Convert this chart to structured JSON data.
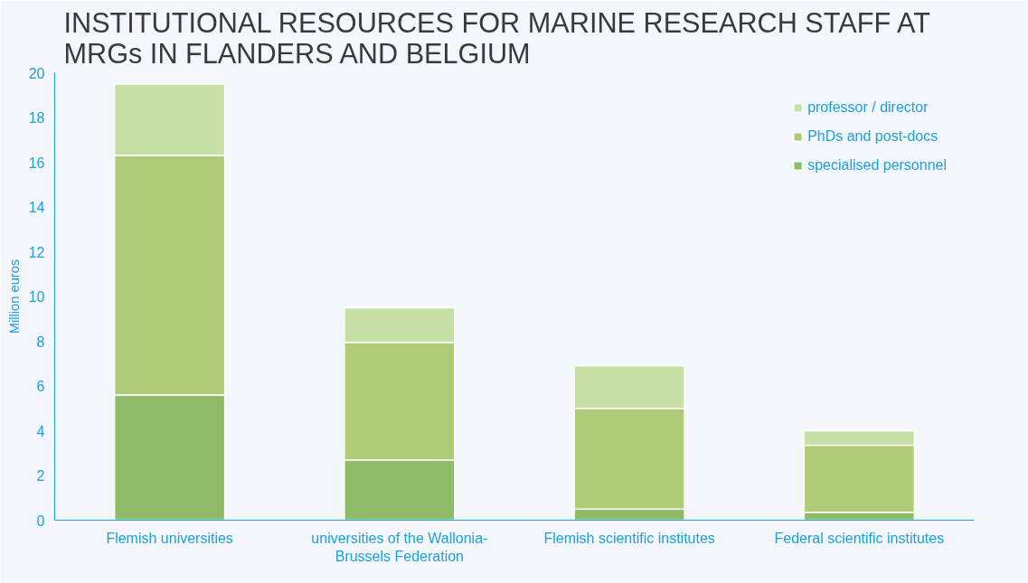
{
  "chart_data": {
    "type": "bar",
    "title": "INSTITUTIONAL RESOURCES FOR MARINE RESEARCH STAFF AT MRGs IN FLANDERS AND BELGIUM",
    "ylabel": "Million euros",
    "categories": [
      "Flemish universities",
      "universities of the Wallonia-Brussels Federation",
      "Flemish scientific institutes",
      "Federal scientific institutes"
    ],
    "stacked": true,
    "series": [
      {
        "name": "specialised personnel",
        "color": "#90bb66",
        "values": [
          5.6,
          2.7,
          0.5,
          0.35
        ]
      },
      {
        "name": "PhDs and post-docs",
        "color": "#b0cb77",
        "values": [
          10.7,
          5.25,
          4.5,
          3.0
        ]
      },
      {
        "name": "professor / director",
        "color": "#c5dfa5",
        "values": [
          3.2,
          1.55,
          1.9,
          0.65
        ]
      }
    ],
    "ylim": [
      0,
      20
    ],
    "yticks": [
      0,
      2,
      4,
      6,
      8,
      10,
      12,
      14,
      16,
      18,
      20
    ],
    "grid": false,
    "legend": "top right"
  }
}
